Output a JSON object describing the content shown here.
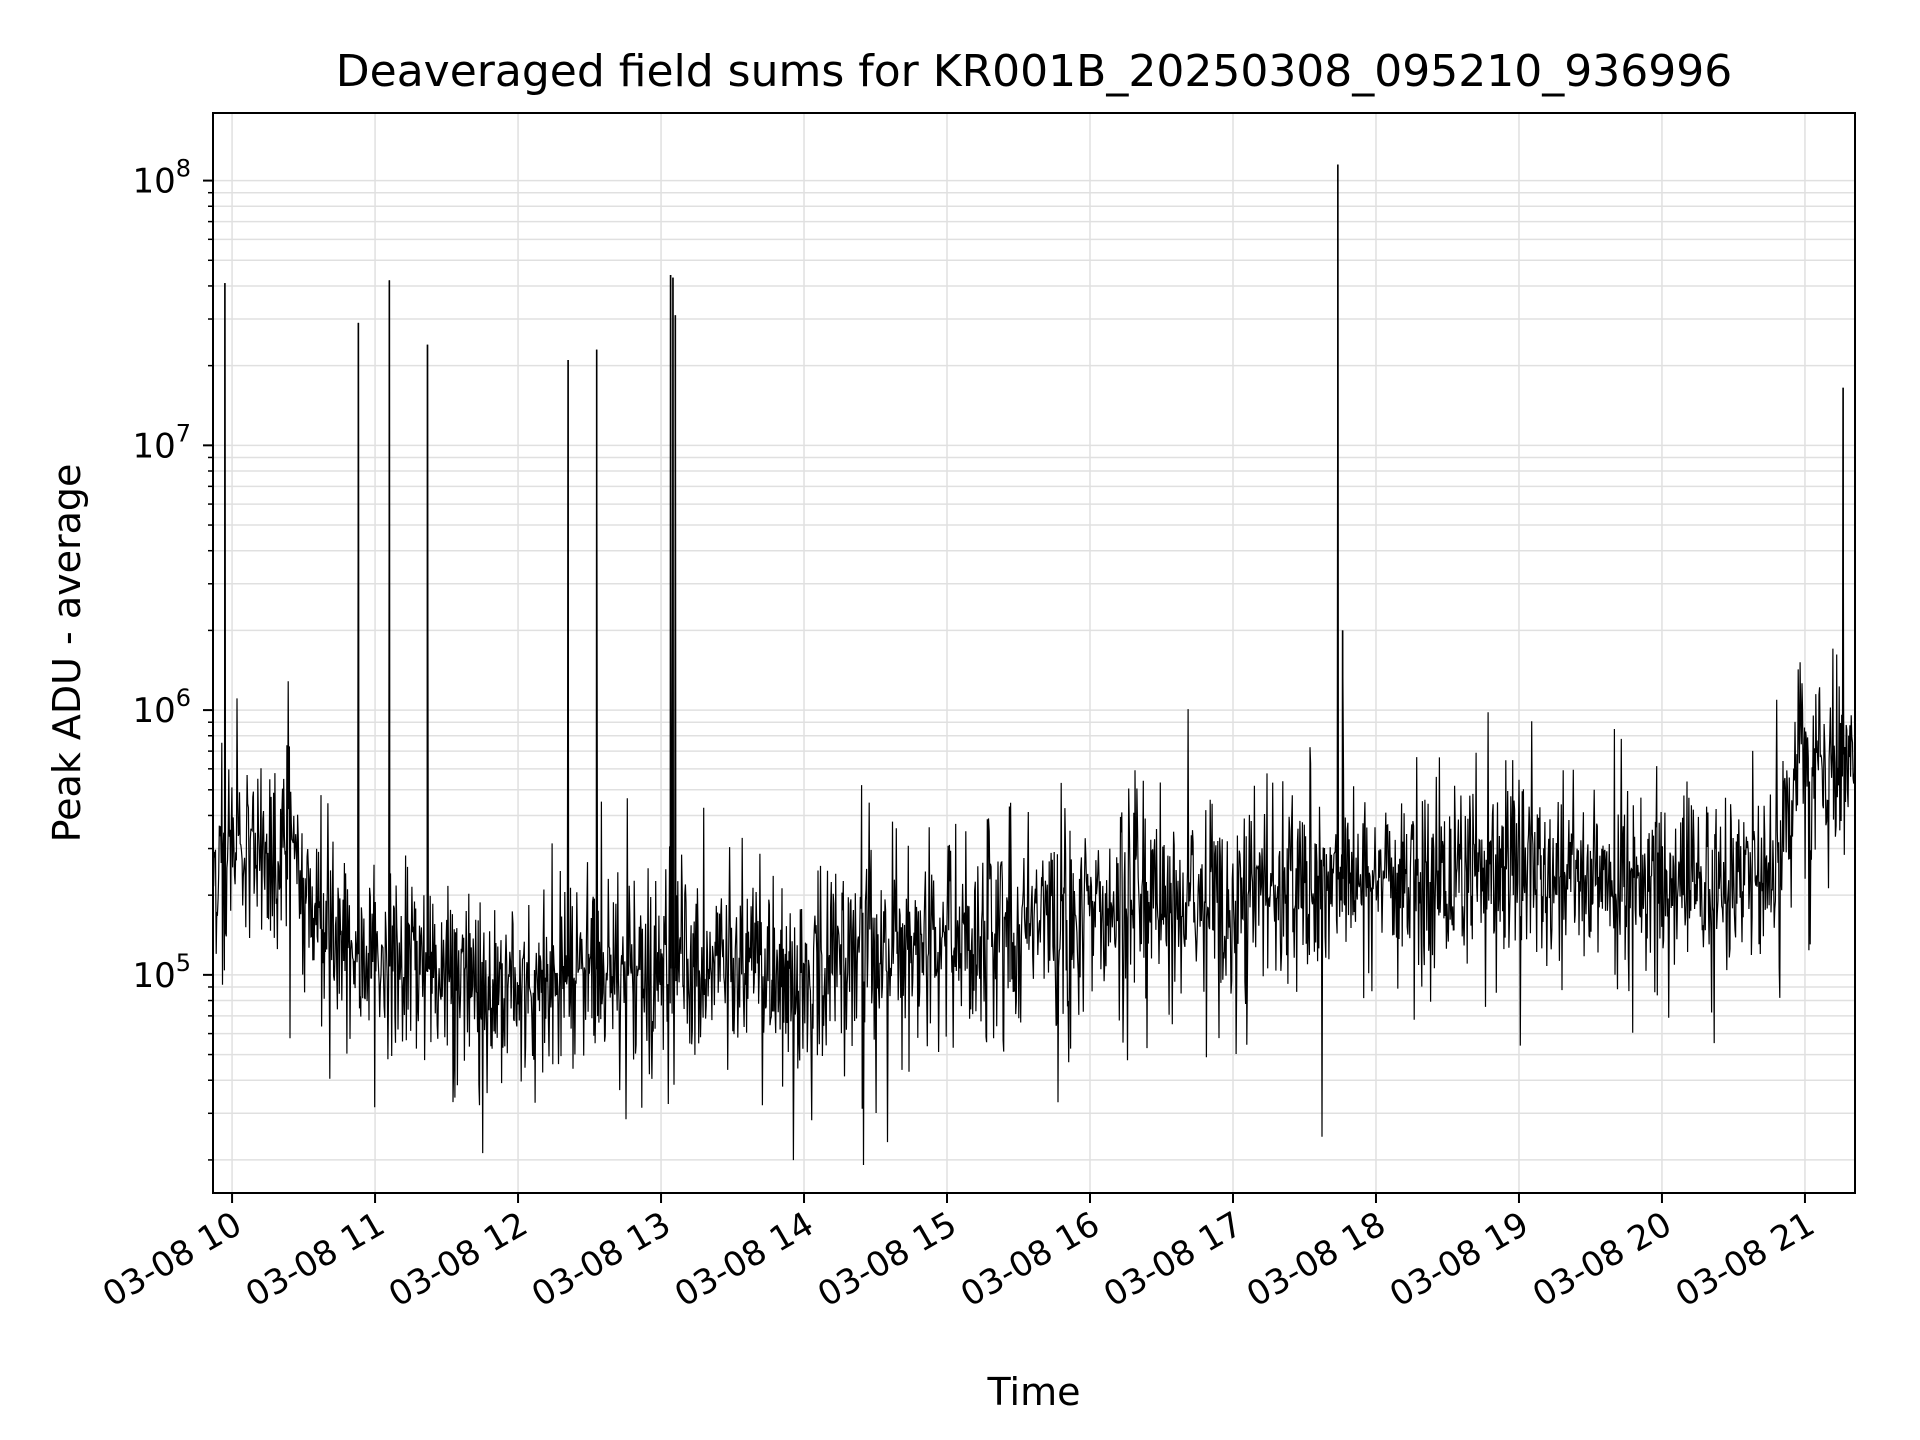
{
  "chart_data": {
    "type": "line",
    "title": "Deaveraged field sums for KR001B_20250308_095210_936996",
    "xlabel": "Time",
    "ylabel": "Peak ADU - average",
    "yscale": "log",
    "grid": true,
    "line_color": "#000000",
    "grid_color": "#e0e0e0",
    "xlim": [
      "2025-03-08T09:52:00",
      "2025-03-08T21:21:00"
    ],
    "ylim": [
      15000,
      180000000
    ],
    "x_ticks": [
      {
        "t": "2025-03-08T10:00",
        "label": "03-08 10"
      },
      {
        "t": "2025-03-08T11:00",
        "label": "03-08 11"
      },
      {
        "t": "2025-03-08T12:00",
        "label": "03-08 12"
      },
      {
        "t": "2025-03-08T13:00",
        "label": "03-08 13"
      },
      {
        "t": "2025-03-08T14:00",
        "label": "03-08 14"
      },
      {
        "t": "2025-03-08T15:00",
        "label": "03-08 15"
      },
      {
        "t": "2025-03-08T16:00",
        "label": "03-08 16"
      },
      {
        "t": "2025-03-08T17:00",
        "label": "03-08 17"
      },
      {
        "t": "2025-03-08T18:00",
        "label": "03-08 18"
      },
      {
        "t": "2025-03-08T19:00",
        "label": "03-08 19"
      },
      {
        "t": "2025-03-08T20:00",
        "label": "03-08 20"
      },
      {
        "t": "2025-03-08T21:00",
        "label": "03-08 21"
      }
    ],
    "y_ticks": [
      {
        "value": 100000,
        "base": "10",
        "exp": "5"
      },
      {
        "value": 1000000,
        "base": "10",
        "exp": "6"
      },
      {
        "value": 10000000,
        "base": "10",
        "exp": "7"
      },
      {
        "value": 100000000,
        "base": "10",
        "exp": "8"
      }
    ],
    "series": [
      {
        "baseline": [
          {
            "t": "2025-03-08T09:52",
            "value": 250000
          },
          {
            "t": "2025-03-08T10:10",
            "value": 350000
          },
          {
            "t": "2025-03-08T10:25",
            "value": 280000
          },
          {
            "t": "2025-03-08T10:40",
            "value": 140000
          },
          {
            "t": "2025-03-08T11:00",
            "value": 110000
          },
          {
            "t": "2025-03-08T11:30",
            "value": 100000
          },
          {
            "t": "2025-03-08T12:00",
            "value": 85000
          },
          {
            "t": "2025-03-08T12:30",
            "value": 105000
          },
          {
            "t": "2025-03-08T13:00",
            "value": 105000
          },
          {
            "t": "2025-03-08T13:30",
            "value": 110000
          },
          {
            "t": "2025-03-08T14:00",
            "value": 95000
          },
          {
            "t": "2025-03-08T14:30",
            "value": 120000
          },
          {
            "t": "2025-03-08T15:00",
            "value": 135000
          },
          {
            "t": "2025-03-08T15:30",
            "value": 150000
          },
          {
            "t": "2025-03-08T16:00",
            "value": 170000
          },
          {
            "t": "2025-03-08T16:30",
            "value": 180000
          },
          {
            "t": "2025-03-08T17:00",
            "value": 200000
          },
          {
            "t": "2025-03-08T17:30",
            "value": 220000
          },
          {
            "t": "2025-03-08T18:00",
            "value": 240000
          },
          {
            "t": "2025-03-08T18:30",
            "value": 240000
          },
          {
            "t": "2025-03-08T19:00",
            "value": 240000
          },
          {
            "t": "2025-03-08T19:30",
            "value": 230000
          },
          {
            "t": "2025-03-08T20:00",
            "value": 220000
          },
          {
            "t": "2025-03-08T20:30",
            "value": 230000
          },
          {
            "t": "2025-03-08T20:50",
            "value": 280000
          },
          {
            "t": "2025-03-08T20:56",
            "value": 600000
          },
          {
            "t": "2025-03-08T21:21",
            "value": 700000
          }
        ],
        "spikes": [
          {
            "t": "2025-03-08T09:57",
            "value": 41000000
          },
          {
            "t": "2025-03-08T10:53",
            "value": 29000000
          },
          {
            "t": "2025-03-08T11:06",
            "value": 42000000
          },
          {
            "t": "2025-03-08T11:22",
            "value": 24000000
          },
          {
            "t": "2025-03-08T12:21",
            "value": 21000000
          },
          {
            "t": "2025-03-08T12:33",
            "value": 23000000
          },
          {
            "t": "2025-03-08T13:04",
            "value": 44000000
          },
          {
            "t": "2025-03-08T13:05",
            "value": 43000000
          },
          {
            "t": "2025-03-08T13:06",
            "value": 31000000
          },
          {
            "t": "2025-03-08T17:44",
            "value": 115000000
          },
          {
            "t": "2025-03-08T17:46",
            "value": 2000000
          },
          {
            "t": "2025-03-08T21:16",
            "value": 16500000
          }
        ]
      }
    ]
  }
}
